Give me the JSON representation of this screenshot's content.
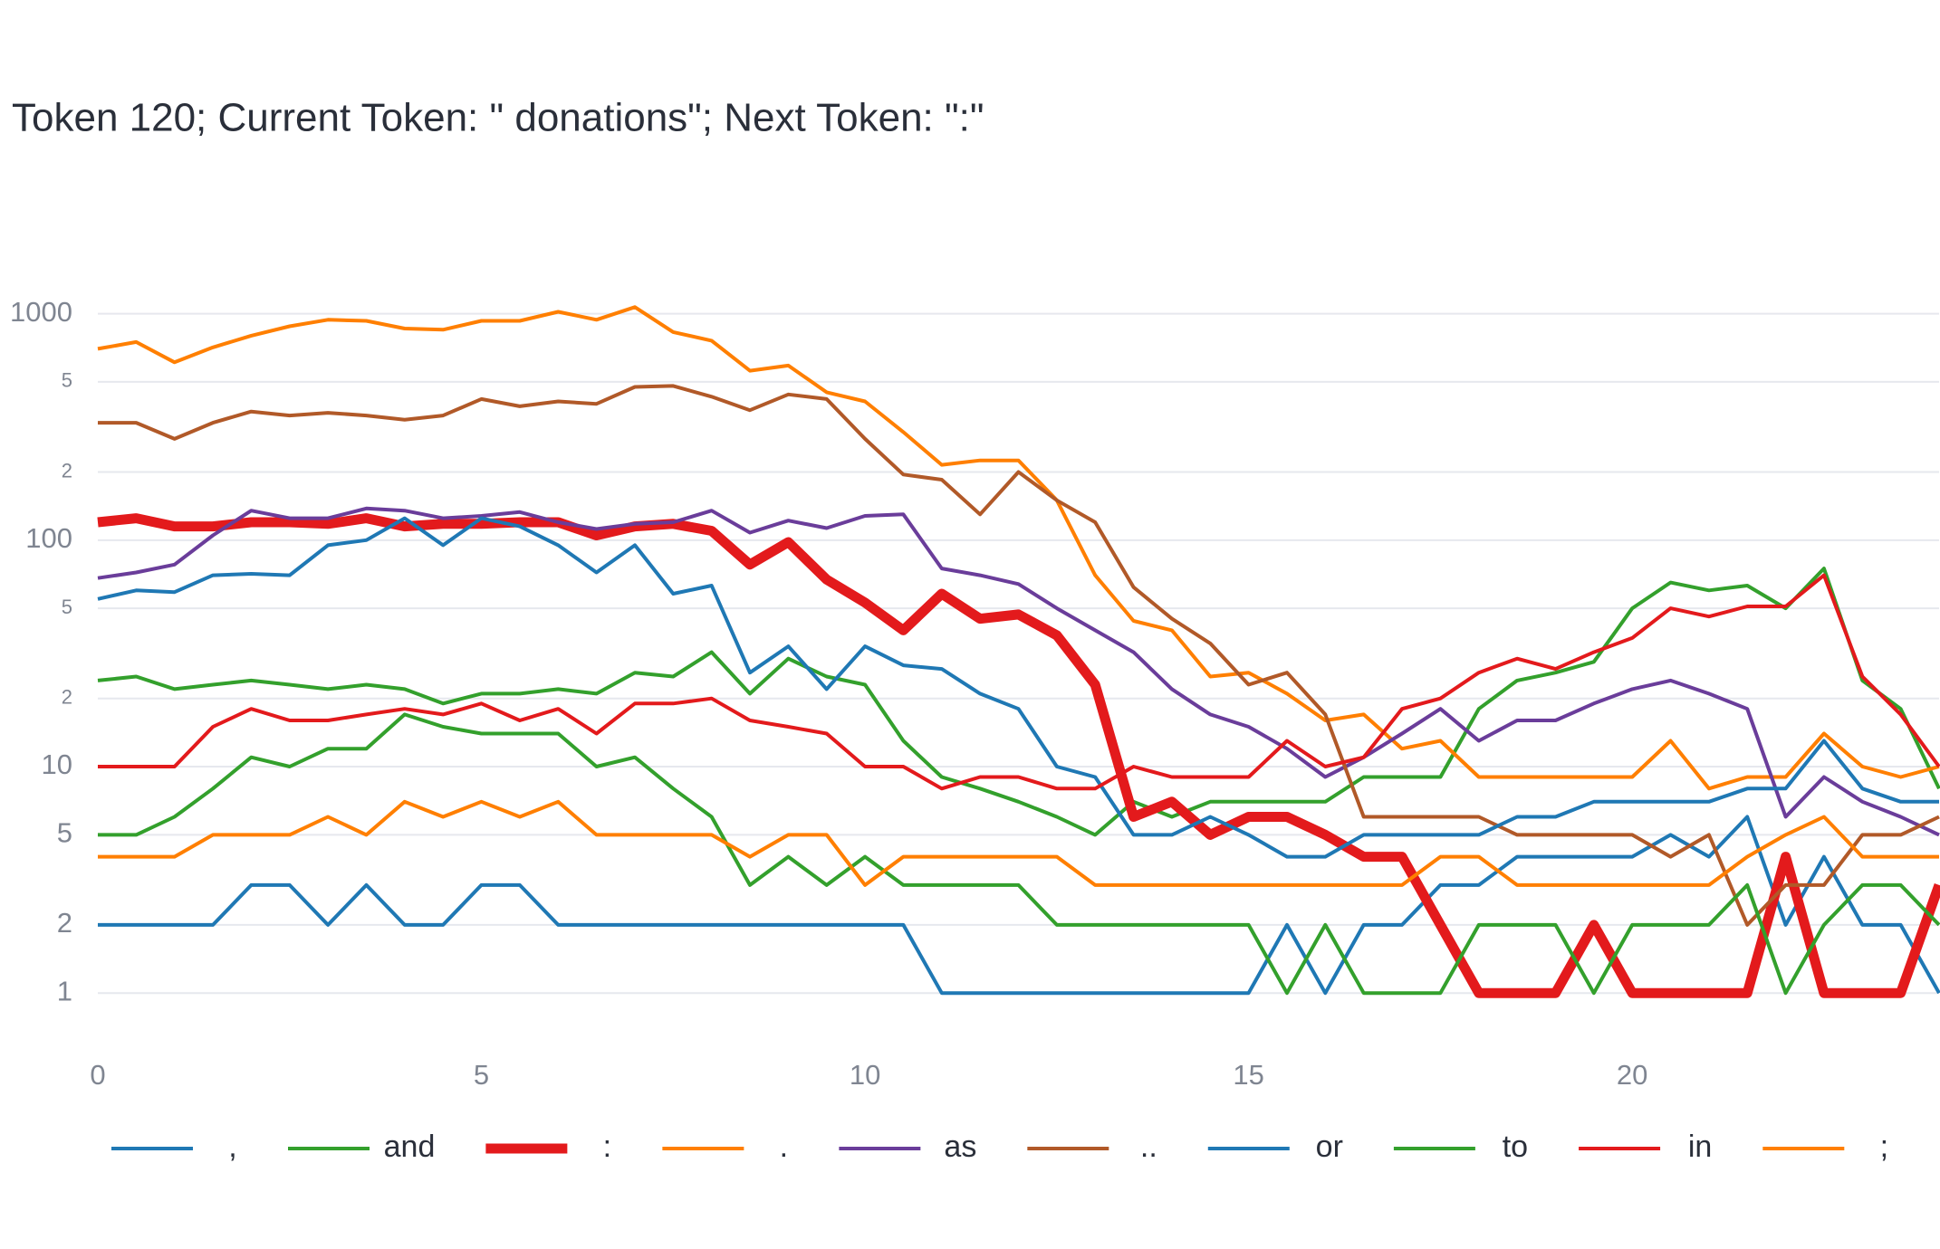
{
  "chart_data": {
    "type": "line",
    "title": "Token 120; Current Token: \" donations\"; Next Token: \":\"",
    "x": [
      0,
      0.5,
      1,
      1.5,
      2,
      2.5,
      3,
      3.5,
      4,
      4.5,
      5,
      5.5,
      6,
      6.5,
      7,
      7.5,
      8,
      8.5,
      9,
      9.5,
      10,
      10.5,
      11,
      11.5,
      12,
      12.5,
      13,
      13.5,
      14,
      14.5,
      15,
      15.5,
      16,
      16.5,
      17,
      17.5,
      18,
      18.5,
      19,
      19.5,
      20,
      20.5,
      21,
      21.5,
      22,
      22.5,
      23,
      23.5,
      24
    ],
    "xlim": [
      0,
      24
    ],
    "xticks": [
      0,
      5,
      10,
      15,
      20
    ],
    "ylim": [
      0.7,
      1350
    ],
    "log_y": true,
    "grid": true,
    "yticks": [
      1,
      2,
      5,
      10,
      {
        "value": 20,
        "label": "2"
      },
      {
        "value": 50,
        "label": "5"
      },
      100,
      {
        "value": 200,
        "label": "2"
      },
      {
        "value": 500,
        "label": "5"
      },
      1000
    ],
    "legend": "bottom",
    "series": [
      {
        "name": ",",
        "color": "#1f78b4",
        "line_width": 4,
        "values": [
          2,
          2,
          2,
          2,
          3,
          3,
          2,
          3,
          2,
          2,
          3,
          3,
          2,
          2,
          2,
          2,
          2,
          2,
          2,
          2,
          2,
          2,
          1,
          1,
          1,
          1,
          1,
          1,
          1,
          1,
          1,
          2,
          1,
          2,
          2,
          3,
          3,
          4,
          4,
          4,
          4,
          5,
          4,
          6,
          2,
          4,
          2,
          2,
          1
        ]
      },
      {
        "name": "and",
        "color": "#33a02c",
        "line_width": 4,
        "values": [
          24,
          25,
          22,
          23,
          24,
          23,
          22,
          23,
          22,
          19,
          21,
          21,
          22,
          21,
          26,
          25,
          32,
          21,
          30,
          25,
          23,
          13,
          9,
          8,
          7,
          6,
          5,
          7,
          6,
          7,
          7,
          7,
          7,
          9,
          9,
          9,
          18,
          24,
          26,
          29,
          50,
          65,
          60,
          63,
          50,
          75,
          24,
          18,
          8
        ]
      },
      {
        "name": ":",
        "color": "#e31a1c",
        "line_width": 11,
        "values": [
          120,
          125,
          115,
          115,
          120,
          120,
          118,
          125,
          115,
          118,
          118,
          120,
          120,
          105,
          115,
          118,
          110,
          78,
          98,
          67,
          53,
          40,
          58,
          45,
          47,
          38,
          23,
          6,
          7,
          5,
          6,
          6,
          5,
          4,
          4,
          2,
          1,
          1,
          1,
          2,
          1,
          1,
          1,
          1,
          4,
          1,
          1,
          1,
          3
        ]
      },
      {
        "name": ".",
        "color": "#ff7f00",
        "line_width": 4,
        "values": [
          700,
          750,
          610,
          710,
          800,
          880,
          940,
          930,
          860,
          850,
          930,
          930,
          1020,
          940,
          1070,
          830,
          760,
          560,
          590,
          450,
          410,
          300,
          215,
          225,
          225,
          150,
          70,
          44,
          40,
          25,
          26,
          21,
          16,
          17,
          12,
          13,
          9,
          9,
          9,
          9,
          9,
          13,
          8,
          9,
          9,
          14,
          10,
          9,
          10
        ]
      },
      {
        "name": "as",
        "color": "#6a3d9a",
        "line_width": 4,
        "values": [
          68,
          72,
          78,
          105,
          135,
          125,
          125,
          138,
          135,
          125,
          128,
          133,
          120,
          112,
          118,
          120,
          135,
          108,
          122,
          113,
          128,
          130,
          75,
          70,
          64,
          50,
          40,
          32,
          22,
          17,
          15,
          12,
          9,
          11,
          14,
          18,
          13,
          16,
          16,
          19,
          22,
          24,
          21,
          18,
          6,
          9,
          7,
          6,
          5
        ]
      },
      {
        "name": "..",
        "color": "#b15928",
        "line_width": 4,
        "values": [
          330,
          330,
          280,
          330,
          370,
          355,
          365,
          355,
          340,
          355,
          420,
          390,
          410,
          400,
          475,
          480,
          430,
          375,
          440,
          420,
          280,
          195,
          185,
          130,
          200,
          150,
          120,
          62,
          45,
          35,
          23,
          26,
          17,
          6,
          6,
          6,
          6,
          5,
          5,
          5,
          5,
          4,
          5,
          2,
          3,
          3,
          5,
          5,
          6
        ]
      },
      {
        "name": "or",
        "color": "#1f78b4",
        "line_width": 4,
        "values": [
          55,
          60,
          59,
          70,
          71,
          70,
          95,
          100,
          125,
          95,
          125,
          115,
          95,
          72,
          95,
          58,
          63,
          26,
          34,
          22,
          34,
          28,
          27,
          21,
          18,
          10,
          9,
          5,
          5,
          6,
          5,
          4,
          4,
          5,
          5,
          5,
          5,
          6,
          6,
          7,
          7,
          7,
          7,
          8,
          8,
          13,
          8,
          7,
          7
        ]
      },
      {
        "name": "to",
        "color": "#33a02c",
        "line_width": 4,
        "values": [
          5,
          5,
          6,
          8,
          11,
          10,
          12,
          12,
          17,
          15,
          14,
          14,
          14,
          10,
          11,
          8,
          6,
          3,
          4,
          3,
          4,
          3,
          3,
          3,
          3,
          2,
          2,
          2,
          2,
          2,
          2,
          1,
          2,
          1,
          1,
          1,
          2,
          2,
          2,
          1,
          2,
          2,
          2,
          3,
          1,
          2,
          3,
          3,
          2
        ]
      },
      {
        "name": "in",
        "color": "#e31a1c",
        "line_width": 4,
        "values": [
          10,
          10,
          10,
          15,
          18,
          16,
          16,
          17,
          18,
          17,
          19,
          16,
          18,
          14,
          19,
          19,
          20,
          16,
          15,
          14,
          10,
          10,
          8,
          9,
          9,
          8,
          8,
          10,
          9,
          9,
          9,
          13,
          10,
          11,
          18,
          20,
          26,
          30,
          27,
          32,
          37,
          50,
          46,
          51,
          51,
          70,
          25,
          17,
          10
        ]
      },
      {
        "name": ";",
        "color": "#ff7f00",
        "line_width": 4,
        "values": [
          4,
          4,
          4,
          5,
          5,
          5,
          6,
          5,
          7,
          6,
          7,
          6,
          7,
          5,
          5,
          5,
          5,
          4,
          5,
          5,
          3,
          4,
          4,
          4,
          4,
          4,
          3,
          3,
          3,
          3,
          3,
          3,
          3,
          3,
          3,
          4,
          4,
          3,
          3,
          3,
          3,
          3,
          3,
          4,
          5,
          6,
          4,
          4,
          4
        ]
      }
    ]
  }
}
